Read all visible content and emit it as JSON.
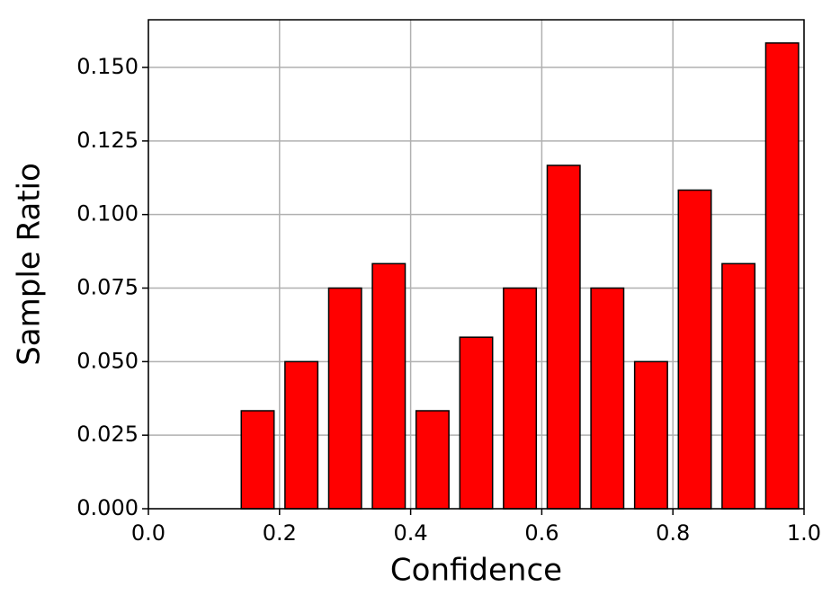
{
  "chart_data": {
    "type": "histogram",
    "xlabel": "Confidence",
    "ylabel": "Sample Ratio",
    "bins": [
      0,
      0.0667,
      0.1333,
      0.2,
      0.2667,
      0.3333,
      0.4,
      0.4667,
      0.5333,
      0.6,
      0.6667,
      0.7333,
      0.8,
      0.8667,
      0.9333,
      1.0
    ],
    "values": [
      0,
      0,
      0.0333,
      0.05,
      0.075,
      0.0833,
      0.0333,
      0.0583,
      0.075,
      0.1167,
      0.075,
      0.05,
      0.1083,
      0.0833,
      0.1583
    ],
    "color": "#ff0000",
    "edgecolor": "#000000",
    "xlim": [
      0,
      1
    ],
    "xticks": [
      {
        "value": 0,
        "label": "0.0"
      },
      {
        "value": 0.2,
        "label": "0.2"
      },
      {
        "value": 0.4,
        "label": "0.4"
      },
      {
        "value": 0.6,
        "label": "0.6"
      },
      {
        "value": 0.8,
        "label": "0.8"
      },
      {
        "value": 1,
        "label": "1.0"
      }
    ],
    "ylim": [
      0,
      0.1662
    ],
    "yticks": [
      {
        "value": 0,
        "label": "0.000"
      },
      {
        "value": 0.025,
        "label": "0.025"
      },
      {
        "value": 0.05,
        "label": "0.050"
      },
      {
        "value": 0.075,
        "label": "0.075"
      },
      {
        "value": 0.1,
        "label": "0.100"
      },
      {
        "value": 0.125,
        "label": "0.125"
      },
      {
        "value": 0.15,
        "label": "0.150"
      }
    ],
    "grid": true
  }
}
